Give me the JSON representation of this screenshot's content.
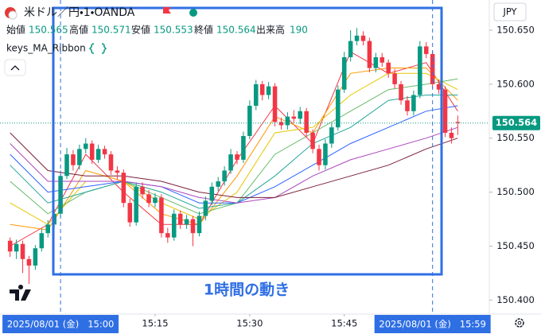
{
  "chart_data": {
    "type": "candlestick",
    "title": "米ドル／円・1・OANDA",
    "currency": "JPY",
    "ohlc_labels": [
      "始値",
      "高値",
      "安値",
      "終値"
    ],
    "volume_label": "出来高",
    "volume": 190,
    "up_color": "#089981",
    "down_color": "#f23645",
    "open": [
      150.455,
      150.445,
      150.452,
      150.438,
      150.432,
      150.448,
      150.462,
      150.47,
      150.48,
      150.515,
      150.535,
      150.525,
      150.54,
      150.545,
      150.53,
      150.54,
      150.535,
      150.52,
      150.518,
      150.49,
      150.472,
      150.505,
      150.498,
      150.49,
      150.495,
      150.462,
      150.458,
      150.48,
      150.47,
      150.475,
      150.462,
      150.478,
      150.492,
      150.505,
      150.51,
      150.52,
      150.535,
      150.53,
      150.552,
      150.58,
      150.6,
      150.59,
      150.598,
      150.565,
      150.562,
      150.57,
      150.568,
      150.575,
      150.555,
      150.54,
      150.525,
      150.545,
      150.56,
      150.595,
      150.625,
      150.64,
      150.645,
      150.64,
      150.615,
      150.625,
      150.62,
      150.61,
      150.6,
      150.585,
      150.575,
      150.59,
      150.635,
      150.628,
      150.6,
      150.595,
      150.555,
      150.565
    ],
    "high": [
      150.458,
      150.456,
      150.455,
      150.441,
      150.451,
      150.466,
      150.474,
      150.484,
      150.52,
      150.541,
      150.539,
      150.544,
      150.55,
      150.548,
      150.544,
      150.543,
      150.538,
      150.524,
      150.521,
      150.494,
      150.509,
      150.509,
      150.502,
      150.499,
      150.498,
      150.467,
      150.484,
      150.483,
      150.479,
      150.478,
      150.482,
      150.496,
      150.509,
      150.514,
      150.524,
      150.54,
      150.538,
      150.556,
      150.585,
      150.604,
      150.603,
      150.602,
      150.601,
      150.569,
      150.574,
      150.576,
      150.579,
      150.578,
      150.558,
      150.544,
      150.549,
      150.564,
      150.599,
      150.63,
      150.65,
      150.652,
      150.649,
      150.643,
      150.629,
      150.629,
      150.623,
      150.614,
      150.603,
      150.589,
      150.594,
      150.64,
      150.639,
      150.631,
      150.604,
      150.598,
      150.56,
      150.571
    ],
    "low": [
      150.44,
      150.438,
      150.425,
      150.415,
      150.428,
      150.445,
      150.458,
      150.466,
      150.477,
      150.512,
      150.52,
      150.521,
      150.536,
      150.526,
      150.527,
      150.531,
      150.516,
      150.512,
      150.486,
      150.468,
      150.469,
      150.494,
      150.486,
      150.486,
      150.458,
      150.453,
      150.455,
      150.466,
      150.466,
      150.45,
      150.459,
      150.474,
      150.488,
      150.501,
      150.506,
      150.517,
      150.526,
      150.527,
      150.549,
      150.576,
      150.585,
      150.586,
      150.561,
      150.558,
      150.558,
      150.564,
      150.563,
      150.551,
      150.536,
      150.52,
      150.521,
      150.541,
      150.557,
      150.592,
      150.621,
      150.636,
      150.636,
      150.611,
      150.611,
      150.616,
      150.606,
      150.596,
      150.581,
      150.571,
      150.571,
      150.587,
      150.624,
      150.596,
      150.591,
      150.551,
      150.545,
      150.553
    ],
    "close": [
      150.445,
      150.452,
      150.438,
      150.432,
      150.448,
      150.462,
      150.47,
      150.48,
      150.515,
      150.535,
      150.525,
      150.54,
      150.545,
      150.53,
      150.54,
      150.535,
      150.52,
      150.518,
      150.49,
      150.472,
      150.505,
      150.498,
      150.49,
      150.495,
      150.462,
      150.458,
      150.48,
      150.47,
      150.475,
      150.462,
      150.478,
      150.492,
      150.505,
      150.51,
      150.52,
      150.535,
      150.53,
      150.552,
      150.58,
      150.6,
      150.59,
      150.598,
      150.565,
      150.562,
      150.57,
      150.568,
      150.575,
      150.555,
      150.54,
      150.525,
      150.545,
      150.56,
      150.595,
      150.625,
      150.64,
      150.645,
      150.64,
      150.615,
      150.625,
      150.62,
      150.61,
      150.6,
      150.585,
      150.575,
      150.59,
      150.635,
      150.628,
      150.6,
      150.595,
      150.555,
      150.55,
      150.564
    ],
    "ribbon": {
      "name": "keys_MA_Ribbon",
      "x": [
        0,
        6,
        12,
        18,
        24,
        30,
        36,
        42,
        48,
        54,
        60,
        66,
        71
      ],
      "series": [
        {
          "color": "#f23645",
          "values": [
            150.45,
            150.47,
            150.535,
            150.5,
            150.47,
            150.47,
            150.53,
            150.58,
            150.545,
            150.63,
            150.61,
            150.62,
            150.575
          ]
        },
        {
          "color": "#ff9800",
          "values": [
            150.47,
            150.465,
            150.52,
            150.51,
            150.48,
            150.47,
            150.515,
            150.57,
            150.555,
            150.61,
            150.615,
            150.615,
            150.585
          ]
        },
        {
          "color": "#e6c700",
          "values": [
            150.49,
            150.47,
            150.51,
            150.51,
            150.49,
            150.475,
            150.5,
            150.555,
            150.56,
            150.59,
            150.61,
            150.61,
            150.595
          ]
        },
        {
          "color": "#66bb6a",
          "values": [
            150.51,
            150.48,
            150.5,
            150.51,
            150.495,
            150.48,
            150.49,
            150.535,
            150.555,
            150.575,
            150.595,
            150.6,
            150.605
          ]
        },
        {
          "color": "#26a69a",
          "values": [
            150.525,
            150.49,
            150.5,
            150.51,
            150.5,
            150.485,
            150.49,
            150.515,
            150.545,
            150.56,
            150.585,
            150.59,
            150.59
          ]
        },
        {
          "color": "#2962ff",
          "values": [
            150.535,
            150.5,
            150.505,
            150.51,
            150.505,
            150.49,
            150.49,
            150.505,
            150.525,
            150.545,
            150.56,
            150.575,
            150.58
          ]
        },
        {
          "color": "#ab47bc",
          "values": [
            150.545,
            150.51,
            150.51,
            150.51,
            150.505,
            150.495,
            150.49,
            150.495,
            150.515,
            150.53,
            150.54,
            150.55,
            150.56
          ]
        },
        {
          "color": "#7b1f3a",
          "values": [
            150.555,
            150.52,
            150.515,
            150.515,
            150.51,
            150.5,
            150.495,
            150.495,
            150.505,
            150.515,
            150.525,
            150.54,
            150.55
          ]
        }
      ]
    },
    "xlim": [
      -1.6,
      76
    ],
    "ylim": [
      150.387,
      150.678
    ],
    "yticks": [
      {
        "value": 150.4,
        "label": "150.400"
      },
      {
        "value": 150.45,
        "label": "150.450"
      },
      {
        "value": 150.5,
        "label": "150.500"
      },
      {
        "value": 150.55,
        "label": "150.550"
      },
      {
        "value": 150.6,
        "label": "150.600"
      },
      {
        "value": 150.65,
        "label": "150.650"
      }
    ],
    "xticks": [
      {
        "value": 23,
        "label": "15:15"
      },
      {
        "value": 38,
        "label": "15:30"
      },
      {
        "value": 53,
        "label": "15:45"
      }
    ],
    "crosshair_x": [
      {
        "value": 8,
        "label": "2025/08/01 (金)   15:00"
      },
      {
        "value": 67,
        "label": "2025/08/01 (金)   15:59"
      }
    ],
    "annotation": "1時間の動き"
  }
}
